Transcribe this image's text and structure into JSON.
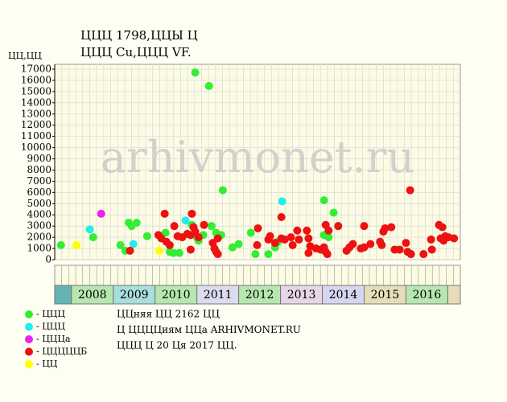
{
  "chart_data": {
    "type": "scatter",
    "title": "ЦЦЦ 1798,ЦЦЫ Ц",
    "subtitle": "ЦЦЦ Cu,ЦЦЦ VF.",
    "y_label": "ЦЦ,ЦЦ",
    "watermark": "arhivmonet.ru",
    "xlim": [
      2007.6,
      2017.3
    ],
    "ylim": [
      0,
      17000
    ],
    "yticks": [
      0,
      1000,
      2000,
      3000,
      4000,
      5000,
      6000,
      7000,
      8000,
      9000,
      10000,
      11000,
      12000,
      13000,
      14000,
      15000,
      16000,
      17000
    ],
    "grid": true,
    "categories": [
      null,
      "2008",
      "2009",
      "2010",
      "2011",
      "2012",
      "2013",
      "2014",
      "2015",
      "2016",
      null
    ],
    "category_colors": [
      "#66b3b3",
      "#b7e6b0",
      "#a8dede",
      "#b7e6b0",
      "#dcdcf0",
      "#b7e6b0",
      "#e6d6e6",
      "#d6d6f0",
      "#e6dcb8",
      "#b7e6b0",
      "#e6dcb8"
    ],
    "series": [
      {
        "name": "- ЦЦЦ",
        "color": "#33ee33",
        "x": [
          2007.75,
          2008.52,
          2009.17,
          2009.29,
          2009.37,
          2009.44,
          2009.56,
          2009.81,
          2010.25,
          2010.35,
          2010.44,
          2010.58,
          2010.88,
          2010.96,
          2011.0,
          2011.04,
          2011.15,
          2011.29,
          2011.35,
          2011.46,
          2011.58,
          2011.62,
          2011.85,
          2012.0,
          2012.29,
          2012.4,
          2012.71,
          2012.87,
          2012.94,
          2014.04,
          2014.04,
          2014.15,
          2014.27,
          2014.38
        ],
        "values": [
          1300,
          2000,
          1300,
          800,
          3300,
          3000,
          3300,
          2100,
          2400,
          700,
          600,
          600,
          3100,
          16700,
          2000,
          1700,
          2200,
          15500,
          3000,
          2400,
          2200,
          6200,
          1100,
          1400,
          2400,
          500,
          500,
          1100,
          1600,
          2200,
          5300,
          2000,
          4200,
          3000
        ]
      },
      {
        "name": "- ЦЦЦ",
        "color": "#22eeee",
        "x": [
          2008.44,
          2009.48,
          2010.73,
          2013.04
        ],
        "values": [
          2700,
          1400,
          3500,
          5200
        ]
      },
      {
        "name": "- ЦЦЦа",
        "color": "#ee22ee",
        "x": [
          2008.71
        ],
        "values": [
          4100
        ]
      },
      {
        "name": "- ЦЦЦЦЦБ",
        "color": "#ee1111",
        "x": [
          2009.4,
          2010.08,
          2010.15,
          2010.23,
          2010.27,
          2010.35,
          2010.46,
          2010.54,
          2010.65,
          2010.77,
          2010.85,
          2010.85,
          2010.88,
          2010.92,
          2010.96,
          2011.04,
          2011.17,
          2011.38,
          2011.42,
          2011.46,
          2011.5,
          2011.5,
          2012.44,
          2012.46,
          2012.71,
          2012.75,
          2012.87,
          2013.02,
          2013.02,
          2013.1,
          2013.25,
          2013.29,
          2013.4,
          2013.44,
          2013.63,
          2013.67,
          2013.67,
          2013.71,
          2013.85,
          2013.96,
          2014.04,
          2014.08,
          2014.08,
          2014.12,
          2014.15,
          2014.38,
          2014.58,
          2014.65,
          2014.73,
          2014.92,
          2015.0,
          2015.0,
          2015.15,
          2015.38,
          2015.42,
          2015.46,
          2015.5,
          2015.65,
          2015.73,
          2015.85,
          2016.0,
          2016.04,
          2016.1,
          2016.12,
          2016.42,
          2016.6,
          2016.62,
          2016.79,
          2016.83,
          2016.87,
          2016.9,
          2016.94,
          2017.02,
          2017.15
        ],
        "values": [
          800,
          2200,
          1900,
          4100,
          1600,
          1300,
          3000,
          2100,
          2000,
          2300,
          900,
          2200,
          4100,
          2900,
          2500,
          2000,
          3100,
          1500,
          1000,
          700,
          1900,
          500,
          1300,
          2800,
          1800,
          2100,
          1500,
          1900,
          3800,
          1800,
          2000,
          1300,
          2600,
          1800,
          2600,
          1900,
          600,
          1200,
          1000,
          900,
          1100,
          700,
          3100,
          500,
          2600,
          3000,
          800,
          1100,
          1400,
          1000,
          3000,
          1100,
          1400,
          1600,
          1300,
          2500,
          2800,
          2900,
          900,
          900,
          1500,
          700,
          6200,
          500,
          500,
          1800,
          900,
          3100,
          1900,
          2900,
          1700,
          2100,
          2000,
          1900
        ]
      },
      {
        "name": "- ЦЦ",
        "color": "#ffff00",
        "x": [
          2008.12,
          2010.1
        ],
        "values": [
          1300,
          800
        ]
      }
    ],
    "notes": [
      "ЦЦняя ЦЦ 2162 ЦЦ",
      "Ц ЦЦЦЦиям ЦЦа ARHIVMONET.RU",
      "ЦЦЦ Ц 20 Ця 2017 ЦЦ."
    ]
  }
}
